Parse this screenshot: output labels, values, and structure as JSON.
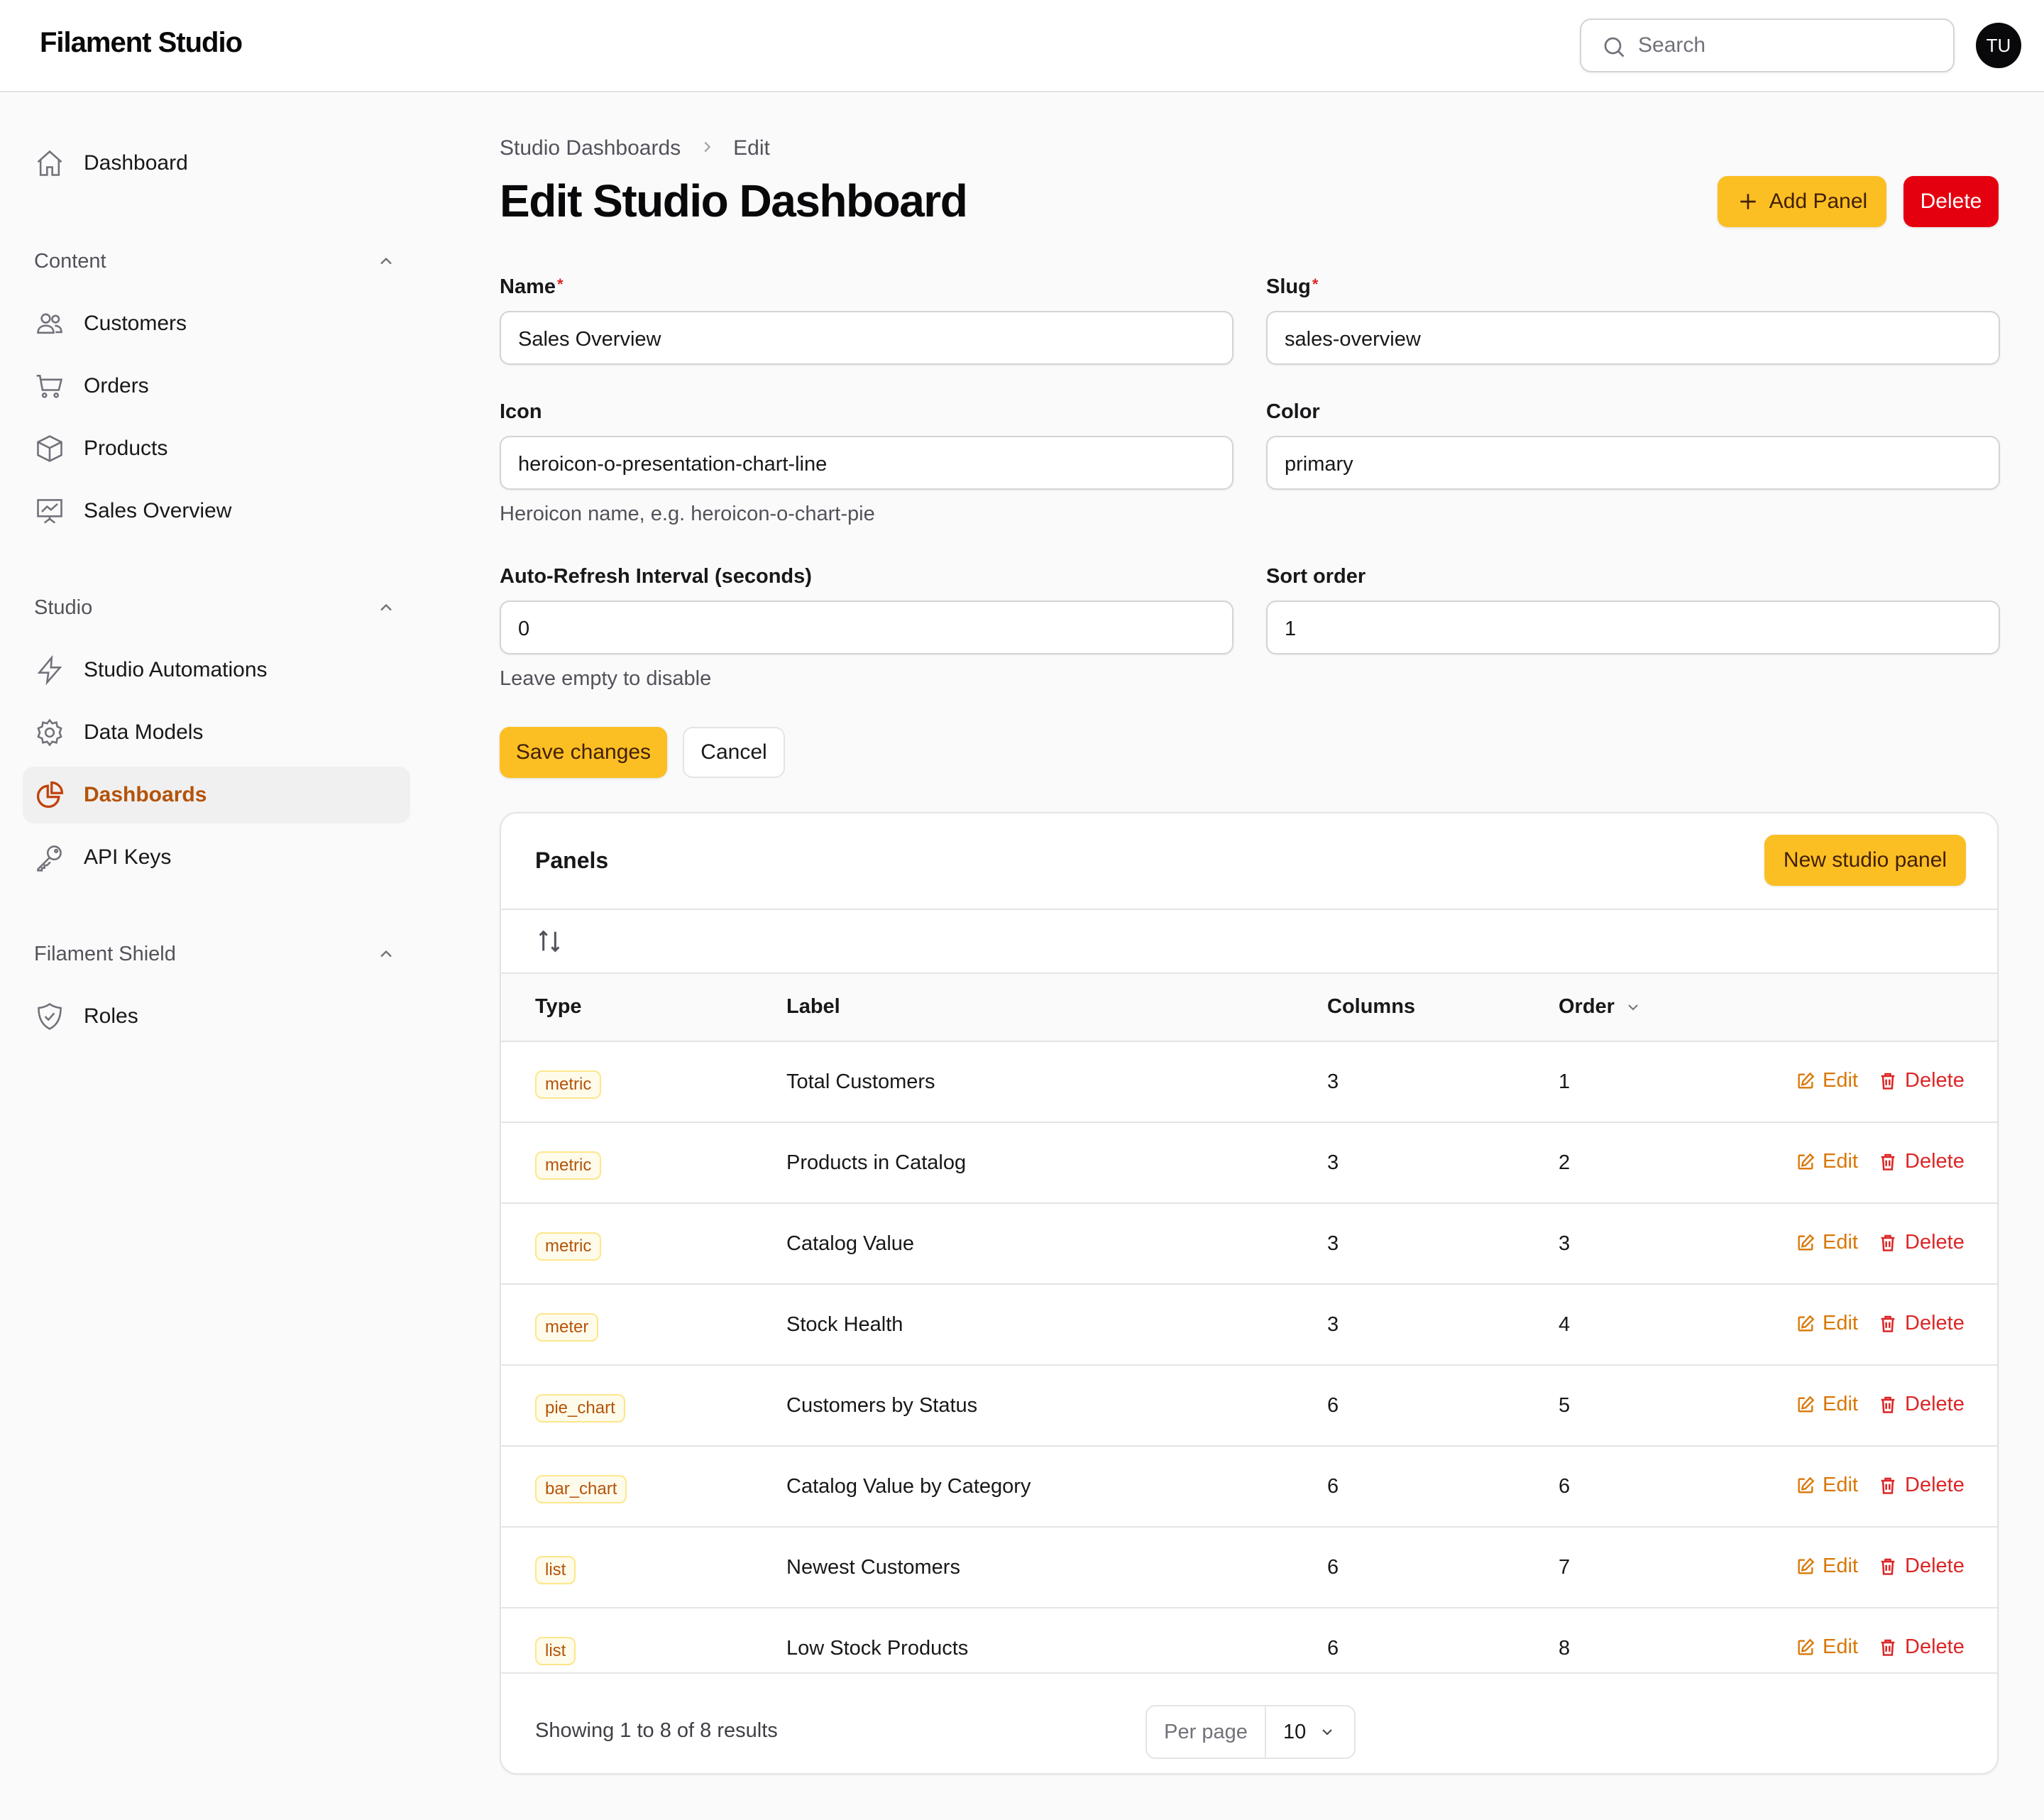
{
  "app": {
    "brand": "Filament Studio",
    "search_placeholder": "Search",
    "user_initials": "TU"
  },
  "sidebar": {
    "dashboard": "Dashboard",
    "groups": {
      "content": "Content",
      "studio": "Studio",
      "shield": "Filament Shield"
    },
    "content_items": [
      "Customers",
      "Orders",
      "Products",
      "Sales Overview"
    ],
    "studio_items": [
      "Studio Automations",
      "Data Models",
      "Dashboards",
      "API Keys"
    ],
    "shield_items": [
      "Roles"
    ],
    "active": "Dashboards"
  },
  "breadcrumb": {
    "parent": "Studio Dashboards",
    "current": "Edit"
  },
  "page": {
    "title": "Edit Studio Dashboard",
    "add_panel": "Add Panel",
    "delete": "Delete"
  },
  "form": {
    "name": {
      "label": "Name",
      "value": "Sales Overview"
    },
    "slug": {
      "label": "Slug",
      "value": "sales-overview"
    },
    "icon": {
      "label": "Icon",
      "value": "heroicon-o-presentation-chart-line",
      "hint": "Heroicon name, e.g. heroicon-o-chart-pie"
    },
    "color": {
      "label": "Color",
      "value": "primary"
    },
    "refresh": {
      "label": "Auto-Refresh Interval (seconds)",
      "value": "0",
      "hint": "Leave empty to disable"
    },
    "sort": {
      "label": "Sort order",
      "value": "1"
    },
    "save": "Save changes",
    "cancel": "Cancel"
  },
  "panels": {
    "title": "Panels",
    "new_button": "New studio panel",
    "columns": {
      "type": "Type",
      "label": "Label",
      "columns": "Columns",
      "order": "Order"
    },
    "edit_label": "Edit",
    "delete_label": "Delete",
    "rows": [
      {
        "type": "metric",
        "label": "Total Customers",
        "columns": "3",
        "order": "1"
      },
      {
        "type": "metric",
        "label": "Products in Catalog",
        "columns": "3",
        "order": "2"
      },
      {
        "type": "metric",
        "label": "Catalog Value",
        "columns": "3",
        "order": "3"
      },
      {
        "type": "meter",
        "label": "Stock Health",
        "columns": "3",
        "order": "4"
      },
      {
        "type": "pie_chart",
        "label": "Customers by Status",
        "columns": "6",
        "order": "5"
      },
      {
        "type": "bar_chart",
        "label": "Catalog Value by Category",
        "columns": "6",
        "order": "6"
      },
      {
        "type": "list",
        "label": "Newest Customers",
        "columns": "6",
        "order": "7"
      },
      {
        "type": "list",
        "label": "Low Stock Products",
        "columns": "6",
        "order": "8"
      }
    ],
    "footer": {
      "summary": "Showing 1 to 8 of 8 results",
      "per_page_label": "Per page",
      "per_page_value": "10"
    }
  },
  "colors": {
    "accent": "#fbbf24",
    "danger": "#e5000f",
    "active_text": "#b45309"
  }
}
